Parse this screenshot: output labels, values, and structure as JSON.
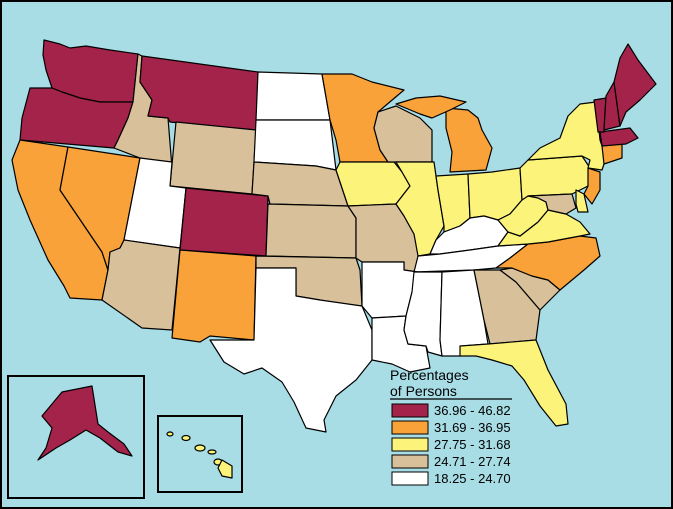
{
  "map": {
    "background_color": "#a8dde6",
    "legend": {
      "title_line1": "Percentages",
      "title_line2": "of Persons",
      "items": [
        {
          "label": "36.96 - 46.82",
          "color": "#a3234a"
        },
        {
          "label": "31.69 - 36.95",
          "color": "#f9a23a"
        },
        {
          "label": "27.75 - 31.68",
          "color": "#fbf37a"
        },
        {
          "label": "24.71 - 27.74",
          "color": "#d8c09a"
        },
        {
          "label": "18.25 - 24.70",
          "color": "#ffffff"
        }
      ]
    },
    "state_classes": {
      "WA": 0,
      "OR": 0,
      "MT": 0,
      "CO": 0,
      "VT": 0,
      "NH": 0,
      "ME": 0,
      "MA": 0,
      "CA": 1,
      "NV": 1,
      "NM": 1,
      "MN": 1,
      "MI": 1,
      "NC": 1,
      "NJ": 1,
      "CT": 1,
      "IA": 2,
      "IL": 2,
      "IN": 2,
      "OH": 2,
      "PA": 2,
      "NY": 2,
      "WV": 2,
      "VA": 2,
      "FL": 2,
      "HI": 2,
      "DE": 2,
      "ID": 3,
      "WY": 3,
      "NE": 3,
      "KS": 3,
      "OK": 3,
      "MO": 3,
      "AZ": 3,
      "WI": 3,
      "GA": 3,
      "SC": 3,
      "MD": 3,
      "UT": 4,
      "ND": 4,
      "SD": 4,
      "TX": 4,
      "AR": 4,
      "LA": 4,
      "MS": 4,
      "AL": 4,
      "TN": 4,
      "KY": 4,
      "AK": 0
    }
  }
}
